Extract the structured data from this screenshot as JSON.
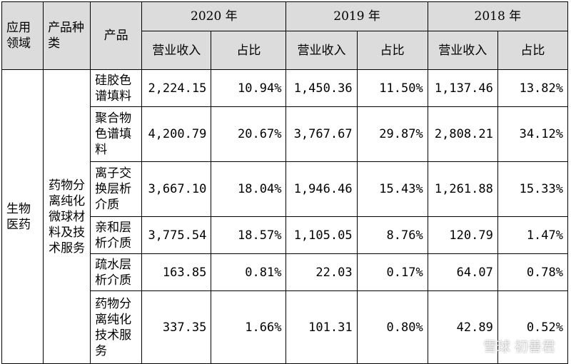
{
  "header": {
    "domain": "应用领域",
    "category": "产品种类",
    "product": "产品",
    "years": [
      "2020 年",
      "2019 年",
      "2018 年"
    ],
    "revenue": "营业收入",
    "share": "占比"
  },
  "domain_value": "生物医药",
  "category_value": "药物分离纯化微球材料及技术服务",
  "rows": [
    {
      "product": "硅胶色谱填料",
      "y2020": [
        "2,224.15",
        "10.94%"
      ],
      "y2019": [
        "1,450.36",
        "11.50%"
      ],
      "y2018": [
        "1,137.46",
        "13.82%"
      ]
    },
    {
      "product": "聚合物色谱填料",
      "y2020": [
        "4,200.79",
        "20.67%"
      ],
      "y2019": [
        "3,767.67",
        "29.87%"
      ],
      "y2018": [
        "2,808.21",
        "34.12%"
      ]
    },
    {
      "product": "离子交换层析介质",
      "y2020": [
        "3,667.10",
        "18.04%"
      ],
      "y2019": [
        "1,946.46",
        "15.43%"
      ],
      "y2018": [
        "1,261.88",
        "15.33%"
      ]
    },
    {
      "product": "亲和层析介质",
      "y2020": [
        "3,775.54",
        "18.57%"
      ],
      "y2019": [
        "1,105.05",
        "8.76%"
      ],
      "y2018": [
        "120.79",
        "1.47%"
      ]
    },
    {
      "product": "疏水层析介质",
      "y2020": [
        "163.85",
        "0.81%"
      ],
      "y2019": [
        "22.03",
        "0.17%"
      ],
      "y2018": [
        "64.07",
        "0.78%"
      ]
    },
    {
      "product": "药物分离纯化技术服务",
      "y2020": [
        "337.35",
        "1.66%"
      ],
      "y2019": [
        "101.31",
        "0.80%"
      ],
      "y2018": [
        "42.89",
        "0.52%"
      ]
    }
  ],
  "watermark": {
    "site": "雪球",
    "author": "初善君"
  }
}
